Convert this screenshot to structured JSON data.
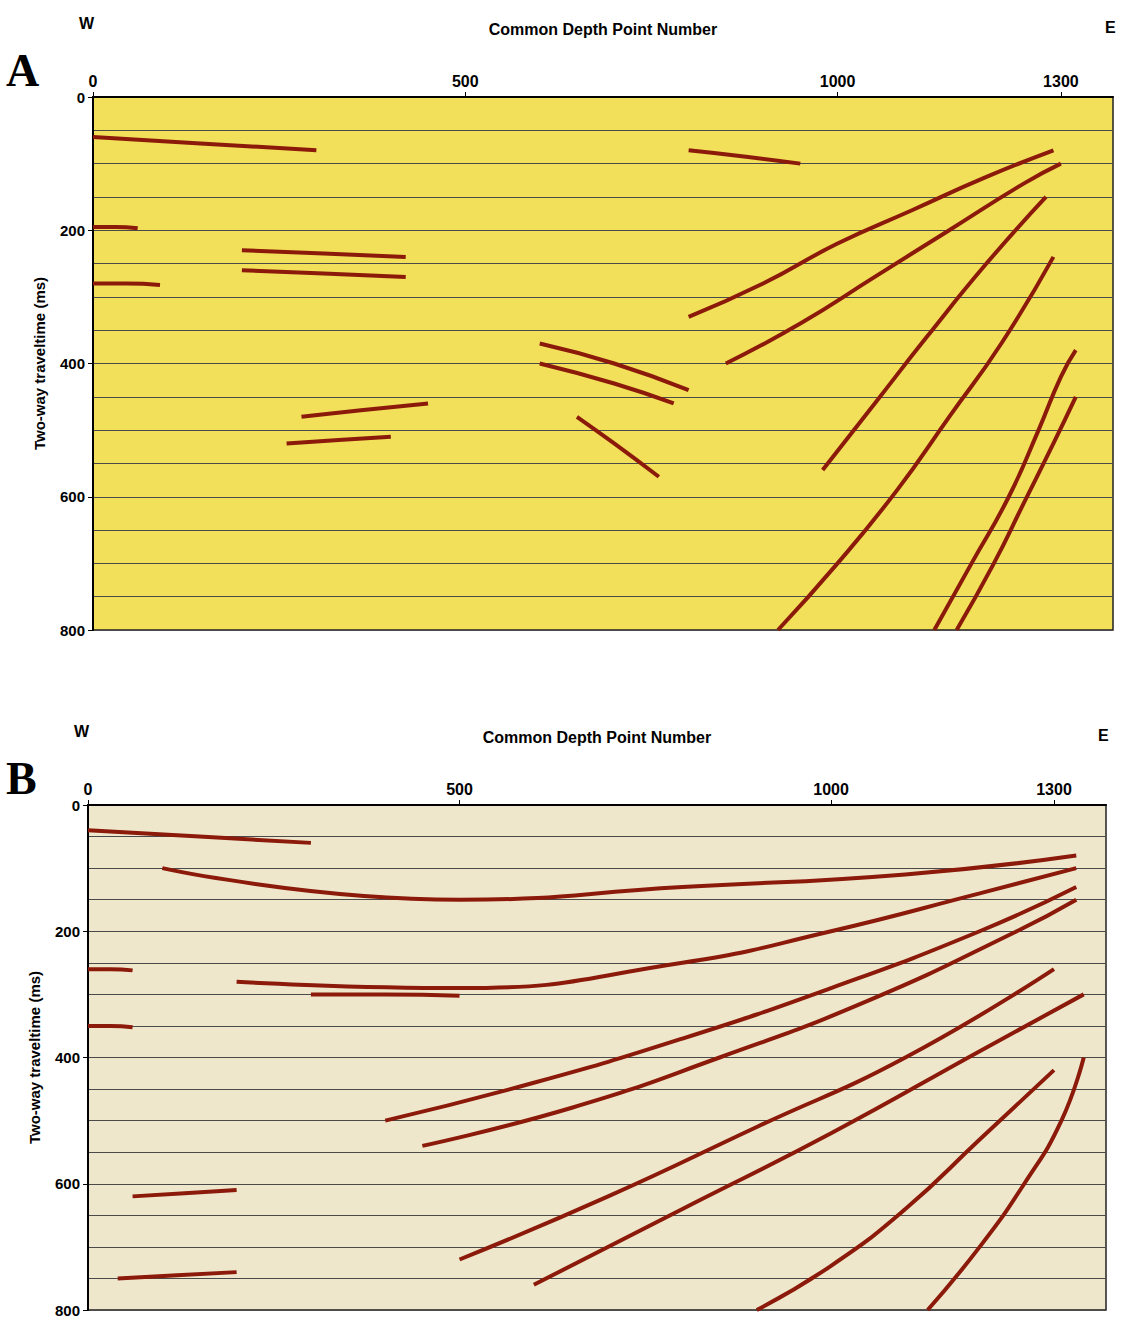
{
  "chart_data": [
    {
      "type": "line",
      "title": "A",
      "annotations": [
        "W",
        "E"
      ],
      "x_label": "Common Depth Point Number",
      "y_label": "Two-way traveltime (ms)",
      "xlim": [
        0,
        1370
      ],
      "xticks": [
        0,
        500,
        1000,
        1300
      ],
      "ylim": [
        0,
        800
      ],
      "yticks": [
        0,
        200,
        400,
        600,
        800
      ],
      "grid": true,
      "color": "#8b1a0a",
      "reflectors": [
        [
          [
            0,
            60
          ],
          [
            150,
            70
          ],
          [
            300,
            80
          ]
        ],
        [
          [
            800,
            80
          ],
          [
            880,
            90
          ],
          [
            950,
            100
          ]
        ],
        [
          [
            0,
            195
          ],
          [
            30,
            195
          ],
          [
            60,
            197
          ]
        ],
        [
          [
            0,
            280
          ],
          [
            45,
            280
          ],
          [
            90,
            282
          ]
        ],
        [
          [
            200,
            230
          ],
          [
            310,
            235
          ],
          [
            420,
            240
          ]
        ],
        [
          [
            200,
            260
          ],
          [
            310,
            265
          ],
          [
            420,
            270
          ]
        ],
        [
          [
            280,
            480
          ],
          [
            360,
            470
          ],
          [
            450,
            460
          ]
        ],
        [
          [
            260,
            520
          ],
          [
            330,
            515
          ],
          [
            400,
            510
          ]
        ],
        [
          [
            600,
            370
          ],
          [
            700,
            400
          ],
          [
            800,
            440
          ]
        ],
        [
          [
            600,
            400
          ],
          [
            700,
            430
          ],
          [
            780,
            460
          ]
        ],
        [
          [
            650,
            480
          ],
          [
            700,
            520
          ],
          [
            760,
            570
          ]
        ],
        [
          [
            800,
            330
          ],
          [
            900,
            280
          ],
          [
            1000,
            220
          ],
          [
            1100,
            170
          ],
          [
            1200,
            120
          ],
          [
            1290,
            80
          ]
        ],
        [
          [
            850,
            400
          ],
          [
            950,
            340
          ],
          [
            1050,
            270
          ],
          [
            1150,
            200
          ],
          [
            1250,
            130
          ],
          [
            1300,
            100
          ]
        ],
        [
          [
            980,
            560
          ],
          [
            1050,
            460
          ],
          [
            1120,
            360
          ],
          [
            1200,
            250
          ],
          [
            1280,
            150
          ]
        ],
        [
          [
            920,
            800
          ],
          [
            1000,
            700
          ],
          [
            1080,
            590
          ],
          [
            1150,
            480
          ],
          [
            1220,
            370
          ],
          [
            1290,
            240
          ]
        ],
        [
          [
            1130,
            800
          ],
          [
            1180,
            700
          ],
          [
            1230,
            600
          ],
          [
            1270,
            500
          ],
          [
            1300,
            420
          ],
          [
            1320,
            380
          ]
        ],
        [
          [
            1160,
            800
          ],
          [
            1210,
            700
          ],
          [
            1250,
            610
          ],
          [
            1290,
            520
          ],
          [
            1320,
            450
          ]
        ]
      ]
    },
    {
      "type": "line",
      "title": "B",
      "annotations": [
        "W",
        "E"
      ],
      "x_label": "Common Depth Point Number",
      "y_label": "Two-way traveltime (ms)",
      "xlim": [
        0,
        1370
      ],
      "xticks": [
        0,
        500,
        1000,
        1300
      ],
      "ylim": [
        0,
        800
      ],
      "yticks": [
        0,
        200,
        400,
        600,
        800
      ],
      "grid": true,
      "color": "#8b1a0a",
      "reflectors": [
        [
          [
            0,
            40
          ],
          [
            150,
            50
          ],
          [
            300,
            60
          ]
        ],
        [
          [
            0,
            260
          ],
          [
            30,
            260
          ],
          [
            60,
            262
          ]
        ],
        [
          [
            0,
            350
          ],
          [
            30,
            350
          ],
          [
            60,
            352
          ]
        ],
        [
          [
            300,
            300
          ],
          [
            400,
            300
          ],
          [
            500,
            302
          ]
        ],
        [
          [
            60,
            620
          ],
          [
            130,
            615
          ],
          [
            200,
            610
          ]
        ],
        [
          [
            40,
            750
          ],
          [
            120,
            745
          ],
          [
            200,
            740
          ]
        ],
        [
          [
            100,
            100
          ],
          [
            500,
            150
          ],
          [
            800,
            130
          ],
          [
            1100,
            110
          ],
          [
            1330,
            80
          ]
        ],
        [
          [
            200,
            280
          ],
          [
            500,
            290
          ],
          [
            800,
            250
          ],
          [
            1000,
            200
          ],
          [
            1200,
            140
          ],
          [
            1330,
            100
          ]
        ],
        [
          [
            400,
            500
          ],
          [
            600,
            440
          ],
          [
            800,
            370
          ],
          [
            1000,
            290
          ],
          [
            1200,
            200
          ],
          [
            1330,
            130
          ]
        ],
        [
          [
            450,
            540
          ],
          [
            650,
            480
          ],
          [
            850,
            400
          ],
          [
            1050,
            310
          ],
          [
            1250,
            200
          ],
          [
            1330,
            150
          ]
        ],
        [
          [
            500,
            720
          ],
          [
            700,
            620
          ],
          [
            900,
            510
          ],
          [
            1100,
            400
          ],
          [
            1300,
            260
          ]
        ],
        [
          [
            600,
            760
          ],
          [
            800,
            640
          ],
          [
            1000,
            520
          ],
          [
            1200,
            390
          ],
          [
            1340,
            300
          ]
        ],
        [
          [
            900,
            800
          ],
          [
            1000,
            730
          ],
          [
            1100,
            640
          ],
          [
            1200,
            530
          ],
          [
            1300,
            420
          ]
        ],
        [
          [
            1130,
            800
          ],
          [
            1200,
            700
          ],
          [
            1260,
            600
          ],
          [
            1310,
            500
          ],
          [
            1340,
            400
          ]
        ]
      ]
    }
  ]
}
